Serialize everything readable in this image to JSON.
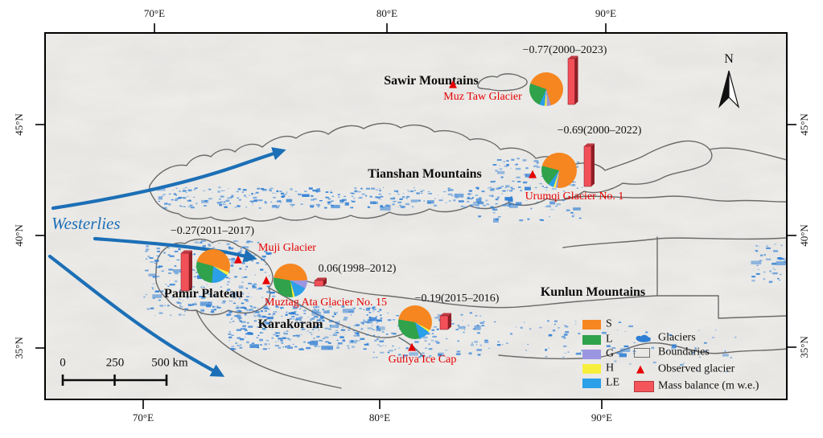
{
  "axes": {
    "top": [
      "70°E",
      "80°E",
      "90°E"
    ],
    "bottom": [
      "70°E",
      "80°E",
      "90°E"
    ],
    "left": [
      "45°N",
      "40°N",
      "35°N"
    ],
    "right": [
      "45°N",
      "40°N",
      "35°N"
    ]
  },
  "map": {
    "north_label": "N",
    "westerlies_label": "Westerlies",
    "mountain_labels": [
      "Sawir Mountains",
      "Tianshan Mountains",
      "Pamir Plateau",
      "Karakoram",
      "Kunlun Mountains"
    ],
    "scalebar": {
      "labels": [
        "0",
        "250",
        "500 km"
      ]
    },
    "observed_glacier_glyph": "▲"
  },
  "legend": {
    "classes": [
      {
        "code": "S",
        "color": "#F6861F"
      },
      {
        "code": "L",
        "color": "#2FA24B"
      },
      {
        "code": "G",
        "color": "#9A96E1"
      },
      {
        "code": "H",
        "color": "#F8EF3D"
      },
      {
        "code": "LE",
        "color": "#2B9FE8"
      }
    ],
    "items": [
      {
        "label": "Glaciers",
        "icon": "glacier-patch-icon",
        "color": "#2E7ED5"
      },
      {
        "label": "Boundaries",
        "icon": "boundary-box-icon",
        "color": "#6F6F6F"
      },
      {
        "label": "Observed glacier",
        "icon": "red-triangle-icon",
        "color": "#E60000"
      },
      {
        "label": "Mass balance (m w.e.)",
        "icon": "red-bar-icon",
        "color": "#F4555A"
      }
    ]
  },
  "colors": {
    "map_bg": "#F0EFEC",
    "boundary_gray": "#6A6A6A",
    "glacier_blue": "#2E7ED5",
    "arrow_blue": "#1C6FB6",
    "bar_front": "#F25059",
    "bar_side": "#8E1F26",
    "bar_top": "#C13A42",
    "triangle_red": "#E60000"
  },
  "chart_data": {
    "type": "pie",
    "classes": [
      "S",
      "L",
      "G",
      "H",
      "LE"
    ],
    "colors": {
      "S": "#F6861F",
      "L": "#2FA24B",
      "G": "#9A96E1",
      "H": "#F8EF3D",
      "LE": "#2B9FE8"
    },
    "legend_note": "pie slices = terrain classes S/L/G/H/LE; red bars = mass balance (m w.e.)",
    "sites": [
      {
        "name": "Muz Taw Glacier",
        "region": "Sawir Mountains",
        "mass_balance_label": "−0.77(2000–2023)",
        "mass_balance_m_we": -0.77,
        "period": "2000–2023",
        "slices": [
          {
            "c": "S",
            "v": 65
          },
          {
            "c": "G",
            "v": 4
          },
          {
            "c": "H",
            "v": 2
          },
          {
            "c": "LE",
            "v": 5
          },
          {
            "c": "L",
            "v": 24
          }
        ]
      },
      {
        "name": "Urumqi Glacier No. 1",
        "region": "Tianshan Mountains",
        "mass_balance_label": "−0.69(2000–2022)",
        "mass_balance_m_we": -0.69,
        "period": "2000–2022",
        "slices": [
          {
            "c": "S",
            "v": 72
          },
          {
            "c": "G",
            "v": 2
          },
          {
            "c": "H",
            "v": 2
          },
          {
            "c": "LE",
            "v": 5
          },
          {
            "c": "L",
            "v": 19
          }
        ]
      },
      {
        "name": "Muji Glacier",
        "region": "Pamir Plateau",
        "mass_balance_label": "−0.27(2011–2017)",
        "mass_balance_m_we": -0.27,
        "period": "2011–2017",
        "slices": [
          {
            "c": "S",
            "v": 52
          },
          {
            "c": "H",
            "v": 3
          },
          {
            "c": "LE",
            "v": 17
          },
          {
            "c": "L",
            "v": 28
          }
        ]
      },
      {
        "name": "Muztag Ata Glacier No. 15",
        "region": "Pamir Plateau",
        "mass_balance_label": "0.06(1998–2012)",
        "mass_balance_m_we": 0.06,
        "period": "1998–2012",
        "slices": [
          {
            "c": "S",
            "v": 47
          },
          {
            "c": "G",
            "v": 8
          },
          {
            "c": "LE",
            "v": 13
          },
          {
            "c": "H",
            "v": 2
          },
          {
            "c": "L",
            "v": 30
          }
        ]
      },
      {
        "name": "Guliya Ice Cap",
        "region": "Kunlun Mountains",
        "mass_balance_label": "−0.19(2015–2016)",
        "mass_balance_m_we": -0.19,
        "period": "2015–2016",
        "slices": [
          {
            "c": "S",
            "v": 55
          },
          {
            "c": "H",
            "v": 2
          },
          {
            "c": "LE",
            "v": 11
          },
          {
            "c": "L",
            "v": 32
          }
        ]
      }
    ]
  }
}
